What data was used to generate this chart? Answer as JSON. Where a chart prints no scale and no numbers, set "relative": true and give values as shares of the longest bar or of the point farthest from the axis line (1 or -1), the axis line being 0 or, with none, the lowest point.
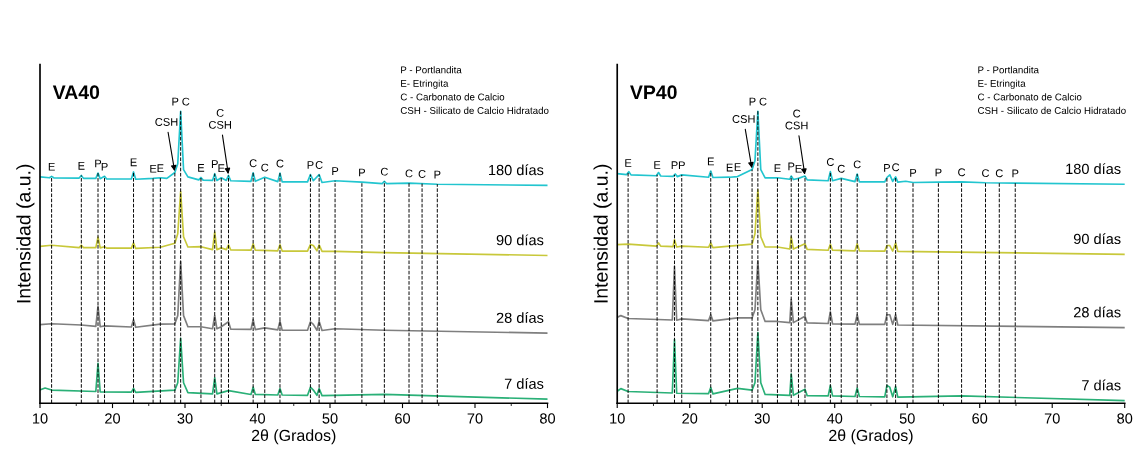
{
  "chart_data": [
    {
      "type": "line",
      "title": "VA40",
      "relative": true,
      "xlabel": "2θ (Grados)",
      "ylabel": "Intensidad (a.u.)",
      "xlim": [
        10,
        80
      ],
      "xticks": [
        10,
        20,
        30,
        40,
        50,
        60,
        70,
        80
      ],
      "series": [
        {
          "name": "180 días",
          "color": "#22c5cf",
          "x": [
            10,
            11.3,
            11.6,
            11.9,
            15.4,
            15.7,
            16.0,
            17.7,
            18.0,
            18.3,
            18.9,
            19.2,
            22.6,
            22.9,
            23.2,
            25.6,
            26.6,
            27.5,
            28.6,
            29.0,
            29.4,
            29.8,
            30.4,
            31.9,
            32.2,
            32.5,
            33.8,
            34.1,
            34.4,
            35.0,
            35.7,
            36.0,
            36.3,
            39.1,
            39.4,
            39.7,
            41.0,
            42.8,
            43.1,
            43.4,
            46.9,
            47.3,
            47.7,
            48.5,
            48.9,
            50.7,
            54.4,
            57.2,
            57.5,
            57.8,
            60.9,
            64.8,
            80
          ],
          "values": [
            0.775,
            0.772,
            0.777,
            0.772,
            0.771,
            0.78,
            0.77,
            0.77,
            0.788,
            0.769,
            0.777,
            0.768,
            0.768,
            0.792,
            0.767,
            0.77,
            0.772,
            0.77,
            0.79,
            0.82,
            1.0,
            0.8,
            0.775,
            0.765,
            0.773,
            0.764,
            0.763,
            0.786,
            0.763,
            0.772,
            0.763,
            0.78,
            0.762,
            0.76,
            0.789,
            0.76,
            0.774,
            0.759,
            0.788,
            0.758,
            0.758,
            0.783,
            0.762,
            0.783,
            0.756,
            0.762,
            0.757,
            0.752,
            0.76,
            0.752,
            0.754,
            0.75,
            0.746
          ]
        },
        {
          "name": "90 días",
          "color": "#c8c83a",
          "x": [
            10,
            11.6,
            15.4,
            15.7,
            16.0,
            17.7,
            18.0,
            18.3,
            18.9,
            19.2,
            22.6,
            22.9,
            23.2,
            26.6,
            28.6,
            29.0,
            29.4,
            29.8,
            30.4,
            32.2,
            33.8,
            34.1,
            34.4,
            35.0,
            35.7,
            36.0,
            36.3,
            39.1,
            39.4,
            39.7,
            42.8,
            43.1,
            43.4,
            46.9,
            47.3,
            47.7,
            48.2,
            48.5,
            48.9,
            50.7,
            57.5,
            80
          ],
          "values": [
            0.537,
            0.541,
            0.533,
            0.541,
            0.533,
            0.533,
            0.569,
            0.532,
            0.536,
            0.531,
            0.531,
            0.549,
            0.53,
            0.534,
            0.548,
            0.58,
            0.725,
            0.57,
            0.535,
            0.536,
            0.526,
            0.586,
            0.526,
            0.532,
            0.526,
            0.542,
            0.525,
            0.524,
            0.546,
            0.524,
            0.522,
            0.543,
            0.521,
            0.521,
            0.543,
            0.54,
            0.522,
            0.542,
            0.52,
            0.52,
            0.516,
            0.506
          ]
        },
        {
          "name": "28 días",
          "color": "#7f7f7f",
          "x": [
            10,
            11.6,
            15.7,
            17.7,
            18.0,
            18.3,
            18.9,
            22.6,
            22.9,
            23.2,
            26.6,
            28.6,
            29.0,
            29.4,
            29.8,
            30.4,
            32.2,
            33.8,
            34.1,
            34.4,
            35.0,
            36.0,
            36.3,
            39.1,
            39.4,
            39.7,
            41.0,
            42.8,
            43.1,
            43.4,
            46.9,
            47.3,
            47.7,
            48.2,
            48.5,
            48.9,
            50.7,
            57.5,
            80
          ],
          "values": [
            0.269,
            0.272,
            0.268,
            0.263,
            0.332,
            0.262,
            0.265,
            0.261,
            0.286,
            0.26,
            0.271,
            0.272,
            0.3,
            0.485,
            0.3,
            0.262,
            0.262,
            0.255,
            0.3,
            0.255,
            0.262,
            0.279,
            0.254,
            0.253,
            0.286,
            0.252,
            0.258,
            0.251,
            0.281,
            0.25,
            0.25,
            0.279,
            0.27,
            0.25,
            0.281,
            0.249,
            0.255,
            0.25,
            0.24
          ]
        },
        {
          "name": "7 días",
          "color": "#2ab077",
          "x": [
            10,
            10.7,
            11.6,
            17.7,
            18.0,
            18.3,
            22.6,
            22.9,
            23.2,
            28.6,
            29.0,
            29.4,
            29.8,
            30.4,
            33.8,
            34.1,
            34.4,
            36.0,
            39.1,
            39.4,
            39.7,
            42.8,
            43.1,
            43.4,
            46.9,
            47.3,
            47.7,
            48.2,
            48.5,
            48.9,
            57.5,
            80
          ],
          "values": [
            0.046,
            0.052,
            0.045,
            0.04,
            0.137,
            0.039,
            0.038,
            0.051,
            0.037,
            0.045,
            0.07,
            0.222,
            0.07,
            0.036,
            0.032,
            0.087,
            0.032,
            0.043,
            0.03,
            0.055,
            0.03,
            0.028,
            0.05,
            0.028,
            0.027,
            0.055,
            0.045,
            0.027,
            0.05,
            0.026,
            0.03,
            0.014
          ]
        }
      ],
      "ref_lines": [
        {
          "axis": "x",
          "value": 11.6,
          "label": "E"
        },
        {
          "axis": "x",
          "value": 15.7,
          "label": "E"
        },
        {
          "axis": "x",
          "value": 18.0,
          "label": "P"
        },
        {
          "axis": "x",
          "value": 18.9,
          "label": "P"
        },
        {
          "axis": "x",
          "value": 22.9,
          "label": "E"
        },
        {
          "axis": "x",
          "value": 25.6,
          "label": "E"
        },
        {
          "axis": "x",
          "value": 26.6,
          "label": "E"
        },
        {
          "axis": "x",
          "value": 28.6
        },
        {
          "axis": "x",
          "value": 29.4,
          "label": "P C"
        },
        {
          "axis": "x",
          "value": 32.2,
          "label": "E"
        },
        {
          "axis": "x",
          "value": 34.1,
          "label": "P"
        },
        {
          "axis": "x",
          "value": 35.0,
          "label": "E"
        },
        {
          "axis": "x",
          "value": 36.0
        },
        {
          "axis": "x",
          "value": 39.4,
          "label": "C"
        },
        {
          "axis": "x",
          "value": 41.0,
          "label": "C"
        },
        {
          "axis": "x",
          "value": 43.1,
          "label": "C"
        },
        {
          "axis": "x",
          "value": 47.3,
          "label": "P"
        },
        {
          "axis": "x",
          "value": 48.5,
          "label": "C"
        },
        {
          "axis": "x",
          "value": 50.7,
          "label": "P"
        },
        {
          "axis": "x",
          "value": 54.4,
          "label": "P"
        },
        {
          "axis": "x",
          "value": 57.5,
          "label": "C"
        },
        {
          "axis": "x",
          "value": 60.9,
          "label": "C"
        },
        {
          "axis": "x",
          "value": 62.7,
          "label": "C"
        },
        {
          "axis": "x",
          "value": 64.8,
          "label": "P"
        }
      ],
      "annotations": [
        "P - Portlandita",
        "E- Etringita",
        "C - Carbonato de Calcio",
        "CSH - Silicato de Calcio Hidratado",
        {
          "text": "CSH",
          "x": 28.6,
          "y": 0.79
        },
        {
          "text": "C\nCSH",
          "x": 36.0,
          "y": 0.78
        }
      ]
    },
    {
      "type": "line",
      "title": "VP40",
      "relative": true,
      "xlabel": "2θ (Grados)",
      "ylabel": "Intensidad (a.u.)",
      "xlim": [
        10,
        80
      ],
      "xticks": [
        10,
        20,
        30,
        40,
        50,
        60,
        70,
        80
      ],
      "series": [
        {
          "name": "180 días",
          "color": "#22c5cf",
          "x": [
            10,
            11.3,
            11.6,
            11.9,
            15.4,
            15.7,
            16.0,
            17.7,
            18.0,
            18.3,
            18.9,
            22.6,
            22.9,
            23.2,
            25.5,
            26.6,
            28.6,
            29.0,
            29.4,
            29.8,
            30.4,
            32.1,
            33.8,
            34.0,
            34.3,
            35.0,
            35.9,
            36.2,
            39.1,
            39.4,
            39.7,
            40.9,
            42.8,
            43.1,
            43.4,
            46.9,
            47.2,
            47.6,
            48.0,
            48.4,
            48.7,
            49.8,
            50.8,
            54.3,
            57.5,
            60.8,
            64.9,
            80
          ],
          "values": [
            0.786,
            0.783,
            0.793,
            0.782,
            0.779,
            0.79,
            0.778,
            0.777,
            0.785,
            0.776,
            0.782,
            0.774,
            0.795,
            0.773,
            0.774,
            0.776,
            0.8,
            0.83,
            1.0,
            0.8,
            0.772,
            0.772,
            0.767,
            0.778,
            0.766,
            0.77,
            0.778,
            0.765,
            0.762,
            0.793,
            0.762,
            0.77,
            0.759,
            0.785,
            0.758,
            0.758,
            0.773,
            0.782,
            0.76,
            0.775,
            0.757,
            0.76,
            0.756,
            0.757,
            0.758,
            0.755,
            0.754,
            0.75
          ]
        },
        {
          "name": "90 días",
          "color": "#c8c83a",
          "x": [
            10,
            11.5,
            15.4,
            15.7,
            16.0,
            17.7,
            17.9,
            18.2,
            18.9,
            22.6,
            22.9,
            23.2,
            28.6,
            29.0,
            29.4,
            29.8,
            30.4,
            32.1,
            33.8,
            34.0,
            34.3,
            35.9,
            36.2,
            39.1,
            39.4,
            39.7,
            42.8,
            43.1,
            43.4,
            46.9,
            47.2,
            47.6,
            48.0,
            48.4,
            48.7,
            80
          ],
          "values": [
            0.543,
            0.545,
            0.538,
            0.549,
            0.538,
            0.536,
            0.56,
            0.535,
            0.538,
            0.534,
            0.549,
            0.533,
            0.545,
            0.58,
            0.731,
            0.57,
            0.535,
            0.535,
            0.528,
            0.57,
            0.528,
            0.546,
            0.527,
            0.524,
            0.544,
            0.524,
            0.522,
            0.546,
            0.522,
            0.521,
            0.54,
            0.54,
            0.521,
            0.549,
            0.52,
            0.51
          ]
        },
        {
          "name": "28 días",
          "color": "#7f7f7f",
          "x": [
            10,
            10.5,
            11.5,
            17.6,
            17.9,
            18.2,
            18.9,
            22.6,
            22.9,
            23.2,
            26.6,
            28.6,
            29.0,
            29.4,
            29.8,
            30.4,
            32.1,
            33.8,
            34.0,
            34.3,
            35.9,
            36.2,
            39.1,
            39.4,
            39.7,
            42.8,
            43.1,
            43.4,
            46.9,
            47.2,
            47.6,
            48.0,
            48.4,
            48.7,
            80
          ],
          "values": [
            0.294,
            0.3,
            0.29,
            0.285,
            0.469,
            0.284,
            0.289,
            0.283,
            0.303,
            0.282,
            0.292,
            0.292,
            0.32,
            0.488,
            0.32,
            0.28,
            0.28,
            0.276,
            0.355,
            0.276,
            0.298,
            0.275,
            0.273,
            0.313,
            0.272,
            0.271,
            0.303,
            0.27,
            0.27,
            0.303,
            0.303,
            0.27,
            0.303,
            0.268,
            0.259
          ]
        },
        {
          "name": "7 días",
          "color": "#2ab077",
          "x": [
            10,
            10.5,
            11.5,
            17.6,
            17.9,
            18.2,
            22.6,
            22.9,
            23.2,
            26.6,
            28.6,
            29.0,
            29.4,
            29.8,
            30.4,
            33.8,
            34.0,
            34.3,
            35.9,
            36.2,
            39.1,
            39.4,
            39.7,
            42.8,
            43.1,
            43.4,
            46.9,
            47.2,
            47.6,
            48.0,
            48.4,
            48.7,
            57.5,
            80
          ],
          "values": [
            0.041,
            0.05,
            0.04,
            0.035,
            0.219,
            0.034,
            0.033,
            0.054,
            0.032,
            0.051,
            0.045,
            0.07,
            0.242,
            0.07,
            0.03,
            0.027,
            0.1,
            0.027,
            0.048,
            0.026,
            0.025,
            0.061,
            0.025,
            0.023,
            0.052,
            0.023,
            0.022,
            0.061,
            0.055,
            0.022,
            0.057,
            0.021,
            0.025,
            0.009
          ]
        }
      ],
      "ref_lines": [
        {
          "axis": "x",
          "value": 11.5,
          "label": "E"
        },
        {
          "axis": "x",
          "value": 15.5,
          "label": "E"
        },
        {
          "axis": "x",
          "value": 17.9,
          "label": "P"
        },
        {
          "axis": "x",
          "value": 18.9,
          "label": "P"
        },
        {
          "axis": "x",
          "value": 22.9,
          "label": "E"
        },
        {
          "axis": "x",
          "value": 25.5,
          "label": "E"
        },
        {
          "axis": "x",
          "value": 26.6,
          "label": "E"
        },
        {
          "axis": "x",
          "value": 28.6
        },
        {
          "axis": "x",
          "value": 29.4,
          "label": "P C"
        },
        {
          "axis": "x",
          "value": 32.1,
          "label": "E"
        },
        {
          "axis": "x",
          "value": 34.0,
          "label": "P"
        },
        {
          "axis": "x",
          "value": 35.0,
          "label": "E"
        },
        {
          "axis": "x",
          "value": 35.9
        },
        {
          "axis": "x",
          "value": 39.4,
          "label": "C"
        },
        {
          "axis": "x",
          "value": 40.9,
          "label": "C"
        },
        {
          "axis": "x",
          "value": 43.1,
          "label": "C"
        },
        {
          "axis": "x",
          "value": 47.2,
          "label": "P"
        },
        {
          "axis": "x",
          "value": 48.4,
          "label": "C"
        },
        {
          "axis": "x",
          "value": 50.8,
          "label": "P"
        },
        {
          "axis": "x",
          "value": 54.3,
          "label": "P"
        },
        {
          "axis": "x",
          "value": 57.5,
          "label": "C"
        },
        {
          "axis": "x",
          "value": 60.8,
          "label": "C"
        },
        {
          "axis": "x",
          "value": 62.7,
          "label": "C"
        },
        {
          "axis": "x",
          "value": 64.9,
          "label": "P"
        }
      ],
      "annotations": [
        "P - Portlandita",
        "E- Etringita",
        "C - Carbonato de Calcio",
        "CSH - Silicato de Calcio Hidratado",
        {
          "text": "CSH",
          "x": 28.6,
          "y": 0.8
        },
        {
          "text": "C\nCSH",
          "x": 35.9,
          "y": 0.778
        }
      ]
    }
  ]
}
